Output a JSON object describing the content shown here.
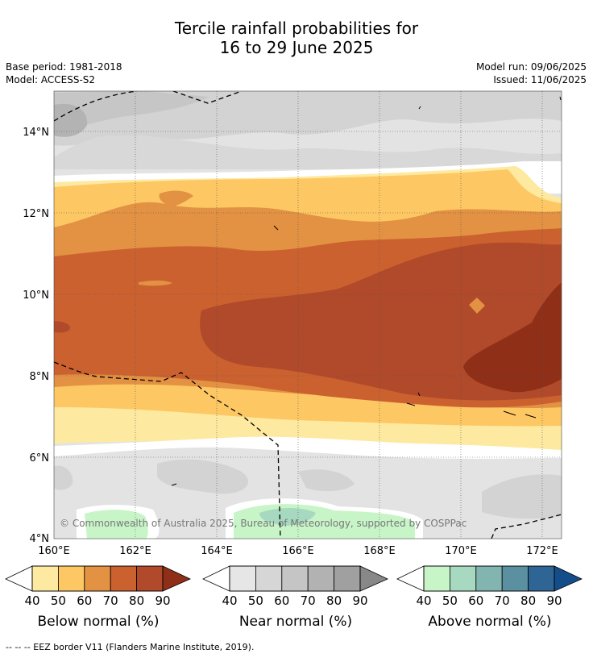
{
  "title_line1": "Tercile rainfall probabilities for",
  "title_line2": "16 to 29 June 2025",
  "base_period": "Base period: 1981-2018",
  "model": "Model: ACCESS-S2",
  "model_run": "Model run: 09/06/2025",
  "issued": "Issued: 11/06/2025",
  "credit": "© Commonwealth of Australia 2025, Bureau of Meteorology, supported by COSPPac",
  "footer": "-- -- -- EEZ border V11 (Flanders Marine Institute, 2019).",
  "map": {
    "lon_ticks": [
      "160°E",
      "162°E",
      "164°E",
      "166°E",
      "168°E",
      "170°E",
      "172°E"
    ],
    "lat_ticks": [
      "14°N",
      "12°N",
      "10°N",
      "8°N",
      "6°N",
      "4°N"
    ],
    "gridlines": true,
    "ocean_color": "#e3e3e3"
  },
  "colorbars": [
    {
      "label": "Below normal (%)",
      "ticks": [
        "40",
        "50",
        "60",
        "70",
        "80",
        "90"
      ],
      "colors": [
        "#fee9a0",
        "#fdc863",
        "#e29242",
        "#cc6130",
        "#b04a2a",
        "#8f2f18"
      ]
    },
    {
      "label": "Near normal (%)",
      "ticks": [
        "40",
        "50",
        "60",
        "70",
        "80",
        "90"
      ],
      "colors": [
        "#e6e6e6",
        "#d6d6d6",
        "#c5c5c5",
        "#b2b2b2",
        "#a0a0a0",
        "#888888"
      ]
    },
    {
      "label": "Above normal (%)",
      "ticks": [
        "40",
        "50",
        "60",
        "70",
        "80",
        "90"
      ],
      "colors": [
        "#c8f5c8",
        "#a6d9bf",
        "#82b5b0",
        "#5a90a0",
        "#2f6595",
        "#144e8a"
      ]
    }
  ]
}
